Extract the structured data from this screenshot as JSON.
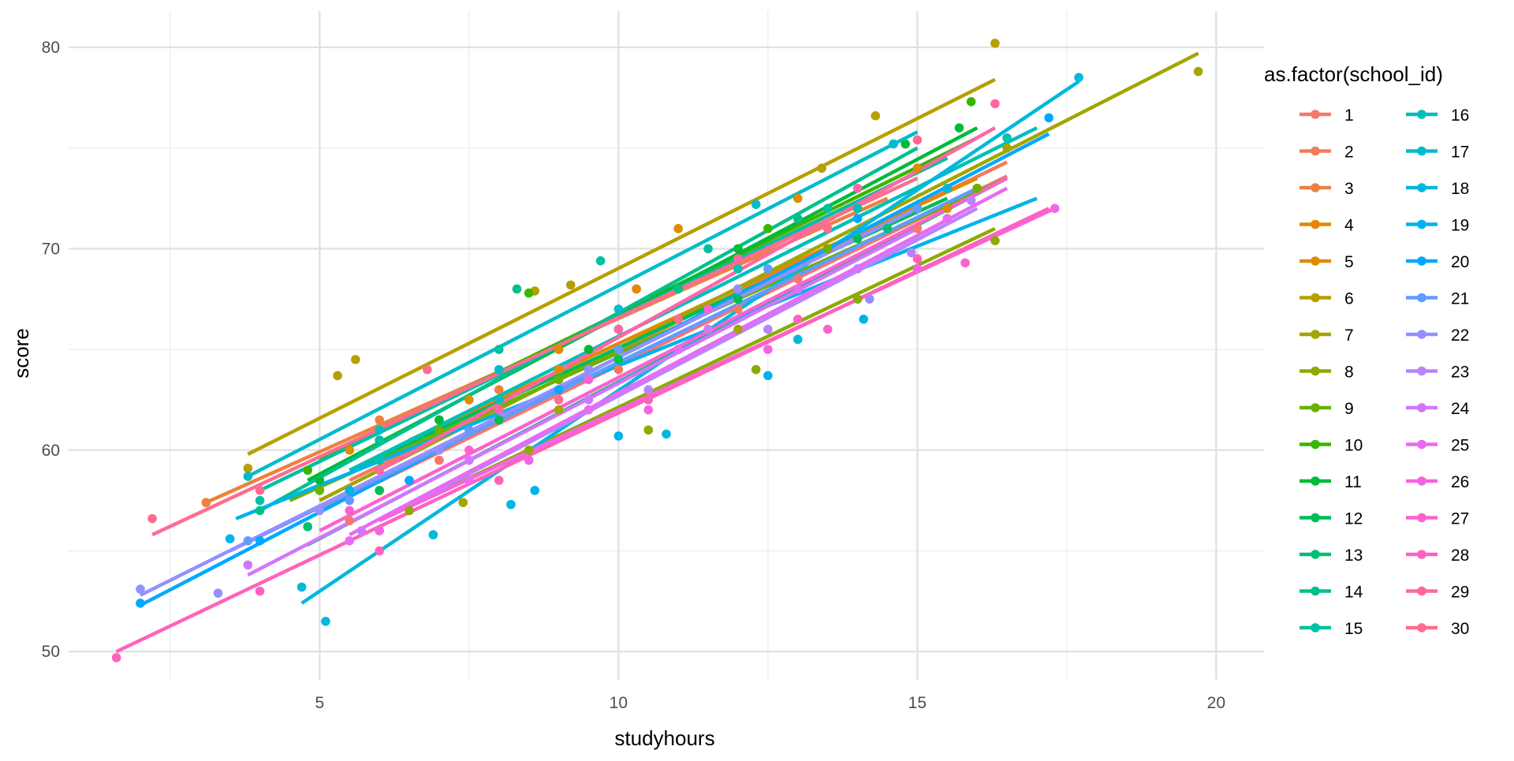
{
  "chart_data": {
    "type": "scatter",
    "title": "",
    "xlabel": "studyhours",
    "ylabel": "score",
    "xlim": [
      0.8,
      20.8
    ],
    "ylim": [
      48.6,
      81.8
    ],
    "x_ticks": [
      5,
      10,
      15,
      20
    ],
    "x_tick_labels": [
      "5",
      "10",
      "15",
      "20"
    ],
    "y_ticks": [
      50,
      60,
      70,
      80
    ],
    "y_tick_labels": [
      "50",
      "60",
      "70",
      "80"
    ],
    "grid": true,
    "legend": {
      "title": "as.factor(school_id)",
      "position": "right",
      "columns": 2,
      "entries": [
        "1",
        "2",
        "3",
        "4",
        "5",
        "6",
        "7",
        "8",
        "9",
        "10",
        "11",
        "12",
        "13",
        "14",
        "15",
        "16",
        "17",
        "18",
        "19",
        "20",
        "21",
        "22",
        "23",
        "24",
        "25",
        "26",
        "27",
        "28",
        "29",
        "30"
      ]
    },
    "series": [
      {
        "name": "1",
        "color": "#F8766D",
        "line": [
          [
            5.0,
            57.0
          ],
          [
            16.5,
            73.6
          ]
        ],
        "points": [
          [
            5.5,
            56.5
          ],
          [
            7.0,
            59.5
          ],
          [
            9.0,
            63.0
          ],
          [
            11.0,
            65.0
          ],
          [
            13.0,
            68.5
          ],
          [
            15.0,
            71.0
          ]
        ]
      },
      {
        "name": "2",
        "color": "#F37B59",
        "line": [
          [
            5.5,
            58.5
          ],
          [
            16.5,
            74.3
          ]
        ],
        "points": [
          [
            6.0,
            58.0
          ],
          [
            8.0,
            61.5
          ],
          [
            10.0,
            64.0
          ],
          [
            12.0,
            67.0
          ],
          [
            14.0,
            71.5
          ],
          [
            16.0,
            73.0
          ]
        ]
      },
      {
        "name": "3",
        "color": "#ED813E",
        "line": [
          [
            3.1,
            57.4
          ],
          [
            14.5,
            72.5
          ]
        ],
        "points": [
          [
            3.1,
            57.4
          ],
          [
            6.0,
            61.5
          ],
          [
            8.0,
            63.0
          ],
          [
            10.0,
            66.0
          ],
          [
            12.0,
            69.5
          ],
          [
            13.0,
            71.5
          ]
        ]
      },
      {
        "name": "4",
        "color": "#E58700",
        "line": [
          [
            6.5,
            60.5
          ],
          [
            16.0,
            73.5
          ]
        ],
        "points": [
          [
            7.0,
            61.0
          ],
          [
            9.0,
            64.0
          ],
          [
            10.3,
            68.0
          ],
          [
            11.5,
            66.0
          ],
          [
            13.5,
            70.0
          ],
          [
            15.5,
            72.0
          ]
        ]
      },
      {
        "name": "5",
        "color": "#DE8C00",
        "line": [
          [
            5.0,
            59.5
          ],
          [
            15.5,
            74.5
          ]
        ],
        "points": [
          [
            5.5,
            60.0
          ],
          [
            7.5,
            62.5
          ],
          [
            9.0,
            65.0
          ],
          [
            11.0,
            71.0
          ],
          [
            13.0,
            72.5
          ],
          [
            15.0,
            74.0
          ]
        ]
      },
      {
        "name": "6",
        "color": "#B79F00",
        "line": [
          [
            3.8,
            59.8
          ],
          [
            16.3,
            78.4
          ]
        ],
        "points": [
          [
            3.8,
            59.1
          ],
          [
            5.3,
            63.7
          ],
          [
            5.6,
            64.5
          ],
          [
            8.6,
            67.9
          ],
          [
            9.2,
            68.2
          ],
          [
            13.4,
            74.0
          ],
          [
            14.3,
            76.6
          ],
          [
            16.3,
            80.2
          ]
        ]
      },
      {
        "name": "7",
        "color": "#A3A500",
        "line": [
          [
            5.0,
            57.5
          ],
          [
            19.7,
            79.7
          ]
        ],
        "points": [
          [
            5.5,
            58.0
          ],
          [
            7.4,
            57.4
          ],
          [
            9.0,
            62.0
          ],
          [
            12.0,
            66.0
          ],
          [
            15.0,
            72.0
          ],
          [
            16.5,
            75.0
          ],
          [
            19.7,
            78.8
          ]
        ]
      },
      {
        "name": "8",
        "color": "#8BAB00",
        "line": [
          [
            6.0,
            56.5
          ],
          [
            16.3,
            71.0
          ]
        ],
        "points": [
          [
            6.5,
            57.0
          ],
          [
            8.5,
            60.0
          ],
          [
            10.5,
            61.0
          ],
          [
            12.3,
            64.0
          ],
          [
            14.0,
            67.5
          ],
          [
            16.3,
            70.4
          ]
        ]
      },
      {
        "name": "9",
        "color": "#6BB100",
        "line": [
          [
            4.5,
            57.5
          ],
          [
            16.5,
            73.5
          ]
        ],
        "points": [
          [
            5.0,
            58.0
          ],
          [
            7.0,
            61.0
          ],
          [
            9.0,
            63.5
          ],
          [
            11.0,
            66.5
          ],
          [
            13.5,
            70.0
          ],
          [
            16.0,
            73.0
          ]
        ]
      },
      {
        "name": "10",
        "color": "#39B600",
        "line": [
          [
            5.0,
            59.5
          ],
          [
            16.0,
            75.5
          ]
        ],
        "points": [
          [
            4.8,
            59.0
          ],
          [
            7.0,
            61.5
          ],
          [
            8.5,
            67.8
          ],
          [
            10.0,
            66.0
          ],
          [
            12.5,
            71.0
          ],
          [
            15.9,
            77.3
          ]
        ]
      },
      {
        "name": "11",
        "color": "#00BA38",
        "line": [
          [
            4.8,
            58.5
          ],
          [
            16.0,
            76.0
          ]
        ],
        "points": [
          [
            5.0,
            58.5
          ],
          [
            7.0,
            61.5
          ],
          [
            9.5,
            65.0
          ],
          [
            12.0,
            70.0
          ],
          [
            14.8,
            75.2
          ],
          [
            15.7,
            76.0
          ]
        ]
      },
      {
        "name": "12",
        "color": "#00BC59",
        "line": [
          [
            5.5,
            59.0
          ],
          [
            15.5,
            72.5
          ]
        ],
        "points": [
          [
            6.0,
            58.0
          ],
          [
            8.0,
            61.5
          ],
          [
            10.0,
            64.5
          ],
          [
            12.0,
            67.5
          ],
          [
            14.0,
            70.5
          ],
          [
            15.0,
            72.0
          ]
        ]
      },
      {
        "name": "13",
        "color": "#00BF74",
        "line": [
          [
            4.8,
            55.3
          ],
          [
            16.5,
            73.5
          ]
        ],
        "points": [
          [
            4.8,
            56.2
          ],
          [
            6.5,
            58.5
          ],
          [
            8.0,
            62.0
          ],
          [
            10.0,
            65.0
          ],
          [
            12.0,
            68.0
          ],
          [
            14.5,
            71.0
          ]
        ]
      },
      {
        "name": "14",
        "color": "#00C08D",
        "line": [
          [
            4.0,
            57.0
          ],
          [
            15.0,
            75.0
          ]
        ],
        "points": [
          [
            4.0,
            57.0
          ],
          [
            6.0,
            60.5
          ],
          [
            8.3,
            68.0
          ],
          [
            9.0,
            63.0
          ],
          [
            11.0,
            68.0
          ],
          [
            13.0,
            71.5
          ]
        ]
      },
      {
        "name": "15",
        "color": "#00C0A3",
        "line": [
          [
            4.0,
            58.0
          ],
          [
            15.5,
            74.5
          ]
        ],
        "points": [
          [
            4.0,
            57.5
          ],
          [
            6.0,
            60.5
          ],
          [
            8.0,
            65.0
          ],
          [
            9.7,
            69.4
          ],
          [
            11.5,
            70.0
          ],
          [
            13.5,
            72.0
          ]
        ]
      },
      {
        "name": "16",
        "color": "#00BFB9",
        "line": [
          [
            5.5,
            59.0
          ],
          [
            17.0,
            76.0
          ]
        ],
        "points": [
          [
            6.0,
            59.5
          ],
          [
            8.0,
            62.5
          ],
          [
            10.0,
            66.0
          ],
          [
            12.0,
            69.0
          ],
          [
            14.0,
            72.0
          ],
          [
            16.5,
            75.5
          ]
        ]
      },
      {
        "name": "17",
        "color": "#00BCCD",
        "line": [
          [
            3.8,
            58.7
          ],
          [
            15.0,
            75.8
          ]
        ],
        "points": [
          [
            3.8,
            58.7
          ],
          [
            6.0,
            61.0
          ],
          [
            8.0,
            64.0
          ],
          [
            10.0,
            67.0
          ],
          [
            12.3,
            72.2
          ],
          [
            14.6,
            75.2
          ]
        ]
      },
      {
        "name": "18",
        "color": "#00B8DE",
        "line": [
          [
            4.7,
            52.4
          ],
          [
            17.7,
            78.3
          ]
        ],
        "points": [
          [
            4.7,
            53.2
          ],
          [
            5.1,
            51.5
          ],
          [
            6.9,
            55.8
          ],
          [
            8.2,
            57.3
          ],
          [
            10.8,
            60.8
          ],
          [
            13.0,
            65.5
          ],
          [
            15.5,
            73.0
          ],
          [
            17.7,
            78.5
          ]
        ]
      },
      {
        "name": "19",
        "color": "#00B2EC",
        "line": [
          [
            3.6,
            56.6
          ],
          [
            17.0,
            72.5
          ]
        ],
        "points": [
          [
            3.5,
            55.6
          ],
          [
            5.5,
            58.0
          ],
          [
            8.6,
            58.0
          ],
          [
            10.0,
            60.7
          ],
          [
            12.5,
            63.7
          ],
          [
            14.1,
            66.5
          ]
        ]
      },
      {
        "name": "20",
        "color": "#00A9FF",
        "line": [
          [
            2.0,
            52.3
          ],
          [
            17.2,
            75.7
          ]
        ],
        "points": [
          [
            2.0,
            52.4
          ],
          [
            4.0,
            55.5
          ],
          [
            6.5,
            58.5
          ],
          [
            9.0,
            63.0
          ],
          [
            11.5,
            67.0
          ],
          [
            14.0,
            71.5
          ],
          [
            17.2,
            76.5
          ]
        ]
      },
      {
        "name": "21",
        "color": "#619CFF",
        "line": [
          [
            3.5,
            55.0
          ],
          [
            16.0,
            73.0
          ]
        ],
        "points": [
          [
            3.8,
            55.5
          ],
          [
            5.5,
            57.5
          ],
          [
            7.5,
            61.0
          ],
          [
            10.0,
            65.0
          ],
          [
            12.5,
            69.0
          ],
          [
            15.0,
            72.0
          ]
        ]
      },
      {
        "name": "22",
        "color": "#9590FF",
        "line": [
          [
            2.0,
            52.8
          ],
          [
            15.0,
            72.0
          ]
        ],
        "points": [
          [
            2.0,
            53.1
          ],
          [
            3.3,
            52.9
          ],
          [
            5.0,
            57.0
          ],
          [
            7.0,
            60.0
          ],
          [
            9.5,
            64.0
          ],
          [
            12.0,
            68.0
          ],
          [
            14.2,
            67.5
          ]
        ]
      },
      {
        "name": "23",
        "color": "#B983FF",
        "line": [
          [
            6.0,
            56.5
          ],
          [
            16.0,
            72.0
          ]
        ],
        "points": [
          [
            6.0,
            56.0
          ],
          [
            8.5,
            59.5
          ],
          [
            10.5,
            63.0
          ],
          [
            12.5,
            66.0
          ],
          [
            14.9,
            69.8
          ],
          [
            15.9,
            72.4
          ]
        ]
      },
      {
        "name": "24",
        "color": "#D376FF",
        "line": [
          [
            3.8,
            53.8
          ],
          [
            15.0,
            71.0
          ]
        ],
        "points": [
          [
            3.8,
            54.3
          ],
          [
            5.7,
            56.0
          ],
          [
            7.5,
            59.5
          ],
          [
            9.5,
            62.5
          ],
          [
            11.5,
            66.0
          ],
          [
            14.0,
            69.0
          ]
        ]
      },
      {
        "name": "25",
        "color": "#E76BF3",
        "line": [
          [
            5.5,
            55.8
          ],
          [
            16.5,
            73.0
          ]
        ],
        "points": [
          [
            5.5,
            55.5
          ],
          [
            7.5,
            58.5
          ],
          [
            9.5,
            62.0
          ],
          [
            11.0,
            65.0
          ],
          [
            13.0,
            68.0
          ],
          [
            15.5,
            71.5
          ]
        ]
      },
      {
        "name": "26",
        "color": "#F564E3",
        "line": [
          [
            6.0,
            56.5
          ],
          [
            17.3,
            72.0
          ]
        ],
        "points": [
          [
            6.0,
            56.0
          ],
          [
            8.5,
            59.5
          ],
          [
            10.5,
            62.0
          ],
          [
            12.5,
            65.0
          ],
          [
            15.0,
            69.0
          ],
          [
            17.3,
            72.0
          ]
        ]
      },
      {
        "name": "27",
        "color": "#FD61D1",
        "line": [
          [
            5.0,
            56.0
          ],
          [
            16.5,
            73.5
          ]
        ],
        "points": [
          [
            5.5,
            57.0
          ],
          [
            7.5,
            60.0
          ],
          [
            9.5,
            63.5
          ],
          [
            11.5,
            67.0
          ],
          [
            13.5,
            66.0
          ],
          [
            15.8,
            69.3
          ]
        ]
      },
      {
        "name": "28",
        "color": "#FF62BC",
        "line": [
          [
            1.6,
            50.0
          ],
          [
            17.2,
            72.0
          ]
        ],
        "points": [
          [
            1.6,
            49.7
          ],
          [
            4.0,
            53.0
          ],
          [
            6.0,
            55.0
          ],
          [
            8.0,
            58.5
          ],
          [
            10.5,
            62.5
          ],
          [
            13.0,
            66.5
          ],
          [
            15.0,
            69.5
          ]
        ]
      },
      {
        "name": "29",
        "color": "#FF67A4",
        "line": [
          [
            6.0,
            59.0
          ],
          [
            16.3,
            76.0
          ]
        ],
        "points": [
          [
            6.0,
            59.0
          ],
          [
            8.0,
            62.0
          ],
          [
            10.0,
            66.0
          ],
          [
            12.0,
            69.5
          ],
          [
            14.0,
            73.0
          ],
          [
            16.3,
            77.2
          ]
        ]
      },
      {
        "name": "30",
        "color": "#FF6C90",
        "line": [
          [
            2.2,
            55.8
          ],
          [
            15.0,
            73.5
          ]
        ],
        "points": [
          [
            2.2,
            56.6
          ],
          [
            4.0,
            58.0
          ],
          [
            6.8,
            64.0
          ],
          [
            9.0,
            62.5
          ],
          [
            11.0,
            66.5
          ],
          [
            13.5,
            71.0
          ],
          [
            15.0,
            75.4
          ]
        ]
      }
    ]
  }
}
